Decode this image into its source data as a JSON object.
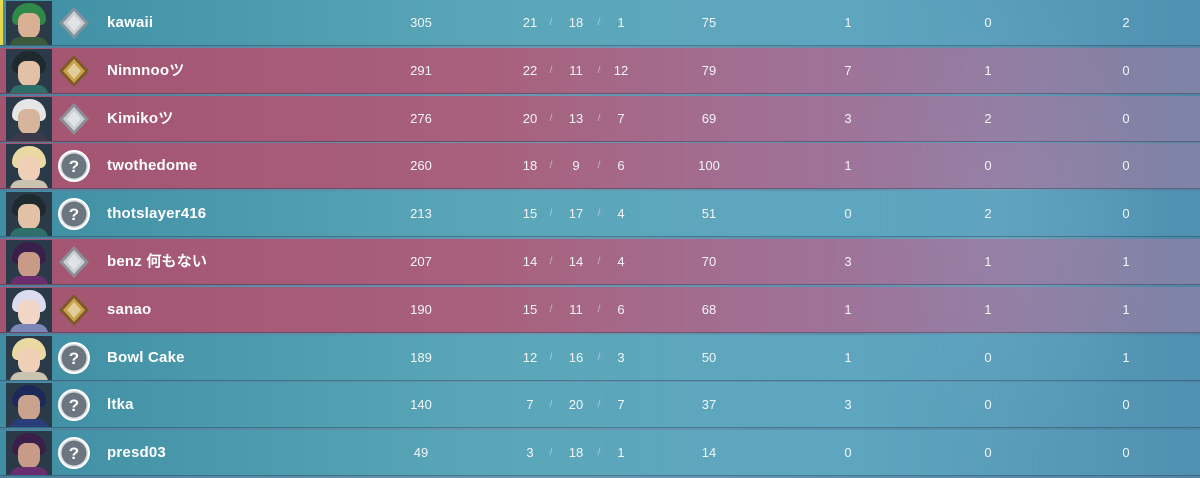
{
  "scoreboard": {
    "rows": [
      {
        "team": "blue",
        "me": true,
        "agent": "agent-1",
        "rank": "silver",
        "name": "kawaii",
        "acs": "305",
        "kills": "21",
        "deaths": "18",
        "assists": "1",
        "econ": "75",
        "first_bloods": "1",
        "plants": "0",
        "defuses": "2"
      },
      {
        "team": "red",
        "me": false,
        "agent": "agent-2",
        "rank": "gold",
        "name": "Ninnnooツ",
        "acs": "291",
        "kills": "22",
        "deaths": "11",
        "assists": "12",
        "econ": "79",
        "first_bloods": "7",
        "plants": "1",
        "defuses": "0"
      },
      {
        "team": "red",
        "me": false,
        "agent": "agent-3",
        "rank": "silver",
        "name": "Kimikoツ",
        "acs": "276",
        "kills": "20",
        "deaths": "13",
        "assists": "7",
        "econ": "69",
        "first_bloods": "3",
        "plants": "2",
        "defuses": "0"
      },
      {
        "team": "red",
        "me": false,
        "agent": "agent-4",
        "rank": "unranked",
        "name": "twothedome",
        "acs": "260",
        "kills": "18",
        "deaths": "9",
        "assists": "6",
        "econ": "100",
        "first_bloods": "1",
        "plants": "0",
        "defuses": "0"
      },
      {
        "team": "blue",
        "me": false,
        "agent": "agent-2",
        "rank": "unranked",
        "name": "thotslayer416",
        "acs": "213",
        "kills": "15",
        "deaths": "17",
        "assists": "4",
        "econ": "51",
        "first_bloods": "0",
        "plants": "2",
        "defuses": "0"
      },
      {
        "team": "red",
        "me": false,
        "agent": "agent-5",
        "rank": "silver",
        "name": "benz 何もない",
        "acs": "207",
        "kills": "14",
        "deaths": "14",
        "assists": "4",
        "econ": "70",
        "first_bloods": "3",
        "plants": "1",
        "defuses": "1"
      },
      {
        "team": "red",
        "me": false,
        "agent": "agent-6",
        "rank": "gold",
        "name": "sanao",
        "acs": "190",
        "kills": "15",
        "deaths": "11",
        "assists": "6",
        "econ": "68",
        "first_bloods": "1",
        "plants": "1",
        "defuses": "1"
      },
      {
        "team": "blue",
        "me": false,
        "agent": "agent-4",
        "rank": "unranked",
        "name": "Bowl Cake",
        "acs": "189",
        "kills": "12",
        "deaths": "16",
        "assists": "3",
        "econ": "50",
        "first_bloods": "1",
        "plants": "0",
        "defuses": "1"
      },
      {
        "team": "blue",
        "me": false,
        "agent": "agent-7",
        "rank": "unranked",
        "name": "ltka",
        "acs": "140",
        "kills": "7",
        "deaths": "20",
        "assists": "7",
        "econ": "37",
        "first_bloods": "3",
        "plants": "0",
        "defuses": "0"
      },
      {
        "team": "blue",
        "me": false,
        "agent": "agent-5",
        "rank": "unranked",
        "name": "presd03",
        "acs": "49",
        "kills": "3",
        "deaths": "18",
        "assists": "1",
        "econ": "14",
        "first_bloods": "0",
        "plants": "0",
        "defuses": "0"
      }
    ],
    "separator": "/",
    "unranked_symbol": "?"
  },
  "colors": {
    "red_team": "#a35470",
    "blue_team": "#3f8ea3",
    "self_marker": "#e8d84a",
    "silver": "#c9ced3",
    "gold": "#c9a24a"
  },
  "agents": {
    "agent-1": {
      "hair": "#2f8a4a",
      "skin": "#d9b094",
      "body": "#3b5a3c"
    },
    "agent-2": {
      "hair": "#1e2a2e",
      "skin": "#e3c1a6",
      "body": "#2f6f6a"
    },
    "agent-3": {
      "hair": "#e6e6e6",
      "skin": "#d7b59c",
      "body": "#3a3a4a"
    },
    "agent-4": {
      "hair": "#e9d9a2",
      "skin": "#efcfb5",
      "body": "#c9c3b0"
    },
    "agent-5": {
      "hair": "#3a1f4a",
      "skin": "#c89a88",
      "body": "#6a2d6e"
    },
    "agent-6": {
      "hair": "#dcdcf0",
      "skin": "#f1d6c6",
      "body": "#7d86b8"
    },
    "agent-7": {
      "hair": "#1c2a5a",
      "skin": "#c9a38e",
      "body": "#2a3f7a"
    }
  }
}
